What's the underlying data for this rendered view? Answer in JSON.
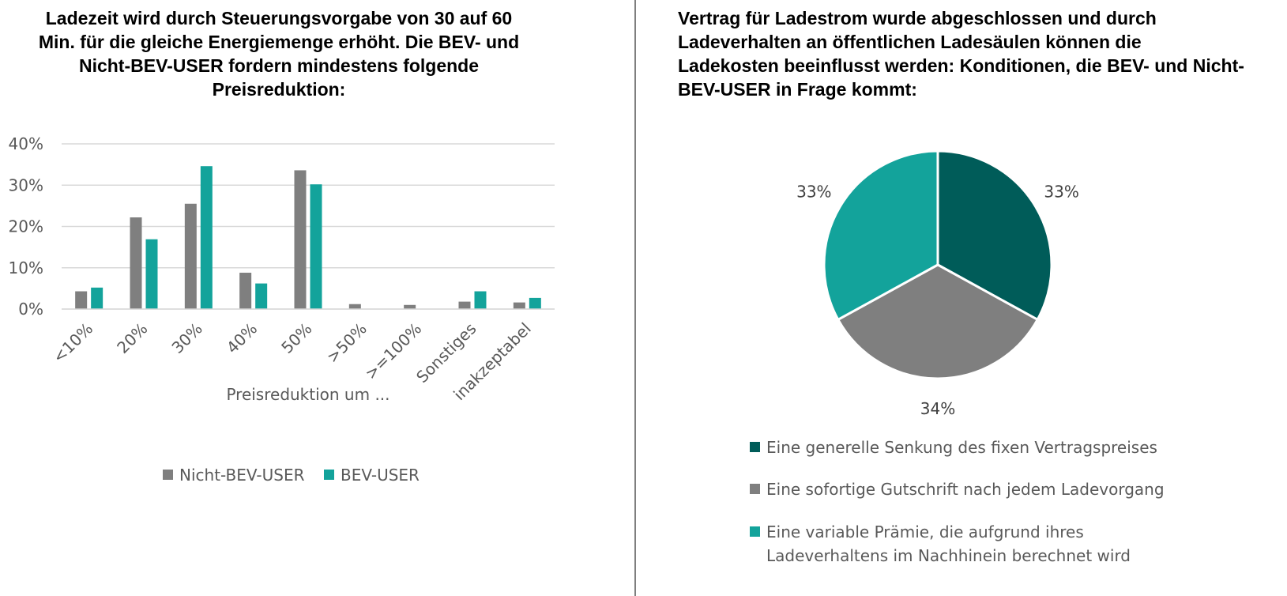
{
  "colors": {
    "nicht_bev": "#7f7f7f",
    "bev": "#13a39b",
    "dark_teal": "#005c59",
    "grid": "#d9d9d9",
    "axis_text": "#595959"
  },
  "chart_data": [
    {
      "type": "bar",
      "title": "Ladezeit wird durch Steuerungsvorgabe von 30 auf 60 Min. für die gleiche Energiemenge erhöht. Die BEV- und Nicht-BEV-USER fordern mindestens folgende Preisreduktion:",
      "xlabel": "Preisreduktion um ...",
      "ylabel": "",
      "categories": [
        "<10%",
        "20%",
        "30%",
        "40%",
        "50%",
        ">50%",
        ">=100%",
        "Sonstiges",
        "inakzeptabel"
      ],
      "series": [
        {
          "name": "Nicht-BEV-USER",
          "color": "#7f7f7f",
          "values": [
            4.3,
            22.2,
            25.5,
            8.8,
            33.6,
            1.2,
            1.0,
            1.8,
            1.6
          ]
        },
        {
          "name": "BEV-USER",
          "color": "#13a39b",
          "values": [
            5.2,
            16.9,
            34.6,
            6.2,
            30.2,
            0,
            0,
            4.3,
            2.7
          ]
        }
      ],
      "ylim": [
        0,
        40
      ],
      "yticks": [
        0,
        10,
        20,
        30,
        40
      ],
      "yticklabels": [
        "0%",
        "10%",
        "20%",
        "30%",
        "40%"
      ],
      "grid": true,
      "legend": "bottom"
    },
    {
      "type": "pie",
      "title": "Vertrag für Ladestrom wurde abgeschlossen und durch Ladeverhalten an öffentlichen Ladesäulen können die Ladekosten beeinflusst werden: Konditionen, die BEV- und Nicht-BEV-USER in Frage kommt:",
      "slices": [
        {
          "label": "Eine generelle Senkung des fixen Vertragspreises",
          "value": 33,
          "display": "33%",
          "color": "#005c59"
        },
        {
          "label": "Eine sofortige Gutschrift nach jedem Ladevorgang",
          "value": 34,
          "display": "34%",
          "color": "#7f7f7f"
        },
        {
          "label": "Eine variable Prämie, die aufgrund ihres Ladeverhaltens im Nachhinein berechnet wird",
          "value": 33,
          "display": "33%",
          "color": "#13a39b"
        }
      ],
      "legend": "bottom",
      "legend_lines": [
        [
          "Eine generelle Senkung des fixen Vertragspreises"
        ],
        [
          "Eine sofortige Gutschrift nach jedem Ladevorgang"
        ],
        [
          "Eine variable Prämie, die aufgrund ihres",
          "Ladeverhaltens im Nachhinein berechnet wird"
        ]
      ]
    }
  ]
}
